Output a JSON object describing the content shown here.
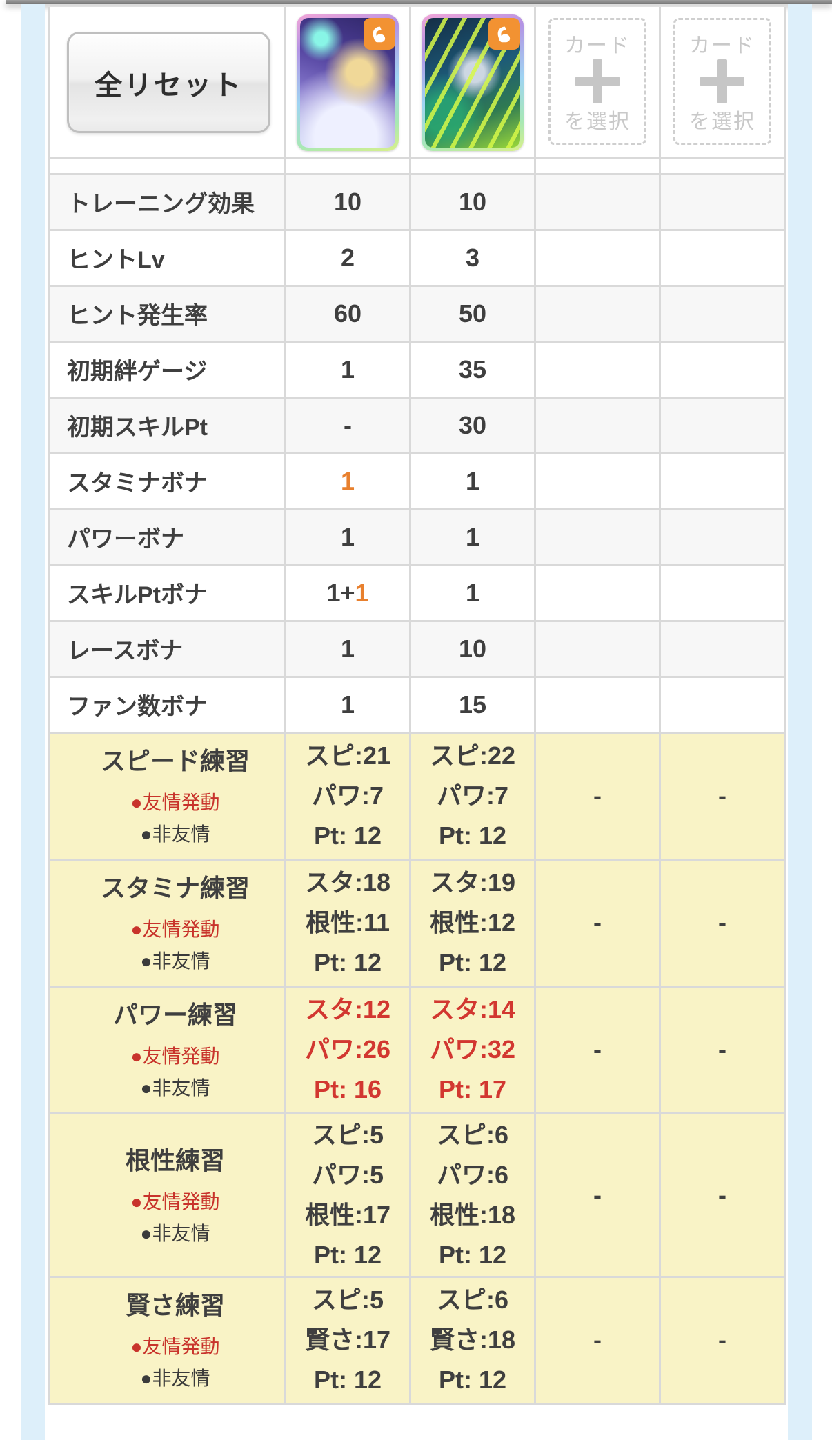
{
  "header": {
    "reset_button_label": "全リセット",
    "cards": [
      {
        "name": "support-card-1",
        "badge": "muscle-power"
      },
      {
        "name": "support-card-2",
        "badge": "muscle-power"
      }
    ],
    "empty_slots": [
      {
        "top": "カード",
        "bottom": "を選択"
      },
      {
        "top": "カード",
        "bottom": "を選択"
      }
    ]
  },
  "colors": {
    "accent_orange": "#e8802e",
    "value_red": "#d23730",
    "legend_red": "#c8332b",
    "row_yellow": "#f9f3c6",
    "row_gray": "#f7f7f7",
    "grid_line": "#d9d9d9"
  },
  "table": {
    "stat_rows": [
      {
        "label": "トレーニング効果",
        "col1": [
          {
            "text": "10"
          }
        ],
        "col2": [
          {
            "text": "10"
          }
        ]
      },
      {
        "label": "ヒントLv",
        "col1": [
          {
            "text": "2"
          }
        ],
        "col2": [
          {
            "text": "3"
          }
        ]
      },
      {
        "label": "ヒント発生率",
        "col1": [
          {
            "text": "60"
          }
        ],
        "col2": [
          {
            "text": "50"
          }
        ]
      },
      {
        "label": "初期絆ゲージ",
        "col1": [
          {
            "text": "1"
          }
        ],
        "col2": [
          {
            "text": "35"
          }
        ]
      },
      {
        "label": "初期スキルPt",
        "col1": [
          {
            "text": "-"
          }
        ],
        "col2": [
          {
            "text": "30"
          }
        ]
      },
      {
        "label": "スタミナボナ",
        "col1": [
          {
            "text": "1",
            "color": "orange"
          }
        ],
        "col2": [
          {
            "text": "1"
          }
        ]
      },
      {
        "label": "パワーボナ",
        "col1": [
          {
            "text": "1"
          }
        ],
        "col2": [
          {
            "text": "1"
          }
        ]
      },
      {
        "label": "スキルPtボナ",
        "col1": [
          {
            "text": "1+"
          },
          {
            "text": "1",
            "color": "orange"
          }
        ],
        "col2": [
          {
            "text": "1"
          }
        ]
      },
      {
        "label": "レースボナ",
        "col1": [
          {
            "text": "1"
          }
        ],
        "col2": [
          {
            "text": "10"
          }
        ]
      },
      {
        "label": "ファン数ボナ",
        "col1": [
          {
            "text": "1"
          }
        ],
        "col2": [
          {
            "text": "15"
          }
        ]
      }
    ],
    "training_rows": [
      {
        "label": "スピード練習",
        "legend": [
          {
            "text": "●友情発動",
            "color": "red"
          },
          {
            "text": "●非友情",
            "color": "dark"
          }
        ],
        "col1": {
          "lines": [
            "スピ:21",
            "パワ:7",
            "Pt: 12"
          ],
          "highlight": false
        },
        "col2": {
          "lines": [
            "スピ:22",
            "パワ:7",
            "Pt: 12"
          ],
          "highlight": false
        },
        "col3": "-",
        "col4": "-"
      },
      {
        "label": "スタミナ練習",
        "legend": [
          {
            "text": "●友情発動",
            "color": "red"
          },
          {
            "text": "●非友情",
            "color": "dark"
          }
        ],
        "col1": {
          "lines": [
            "スタ:18",
            "根性:11",
            "Pt: 12"
          ],
          "highlight": false
        },
        "col2": {
          "lines": [
            "スタ:19",
            "根性:12",
            "Pt: 12"
          ],
          "highlight": false
        },
        "col3": "-",
        "col4": "-"
      },
      {
        "label": "パワー練習",
        "legend": [
          {
            "text": "●友情発動",
            "color": "red"
          },
          {
            "text": "●非友情",
            "color": "dark"
          }
        ],
        "col1": {
          "lines": [
            "スタ:12",
            "パワ:26",
            "Pt: 16"
          ],
          "highlight": true
        },
        "col2": {
          "lines": [
            "スタ:14",
            "パワ:32",
            "Pt: 17"
          ],
          "highlight": true
        },
        "col3": "-",
        "col4": "-"
      },
      {
        "label": "根性練習",
        "legend": [
          {
            "text": "●友情発動",
            "color": "red"
          },
          {
            "text": "●非友情",
            "color": "dark"
          }
        ],
        "col1": {
          "lines": [
            "スピ:5",
            "パワ:5",
            "根性:17",
            "Pt: 12"
          ],
          "highlight": false
        },
        "col2": {
          "lines": [
            "スピ:6",
            "パワ:6",
            "根性:18",
            "Pt: 12"
          ],
          "highlight": false
        },
        "col3": "-",
        "col4": "-"
      },
      {
        "label": "賢さ練習",
        "legend": [
          {
            "text": "●友情発動",
            "color": "red"
          },
          {
            "text": "●非友情",
            "color": "dark"
          }
        ],
        "col1": {
          "lines": [
            "スピ:5",
            "賢さ:17",
            "Pt: 12"
          ],
          "highlight": false
        },
        "col2": {
          "lines": [
            "スピ:6",
            "賢さ:18",
            "Pt: 12"
          ],
          "highlight": false
        },
        "col3": "-",
        "col4": "-"
      }
    ]
  }
}
